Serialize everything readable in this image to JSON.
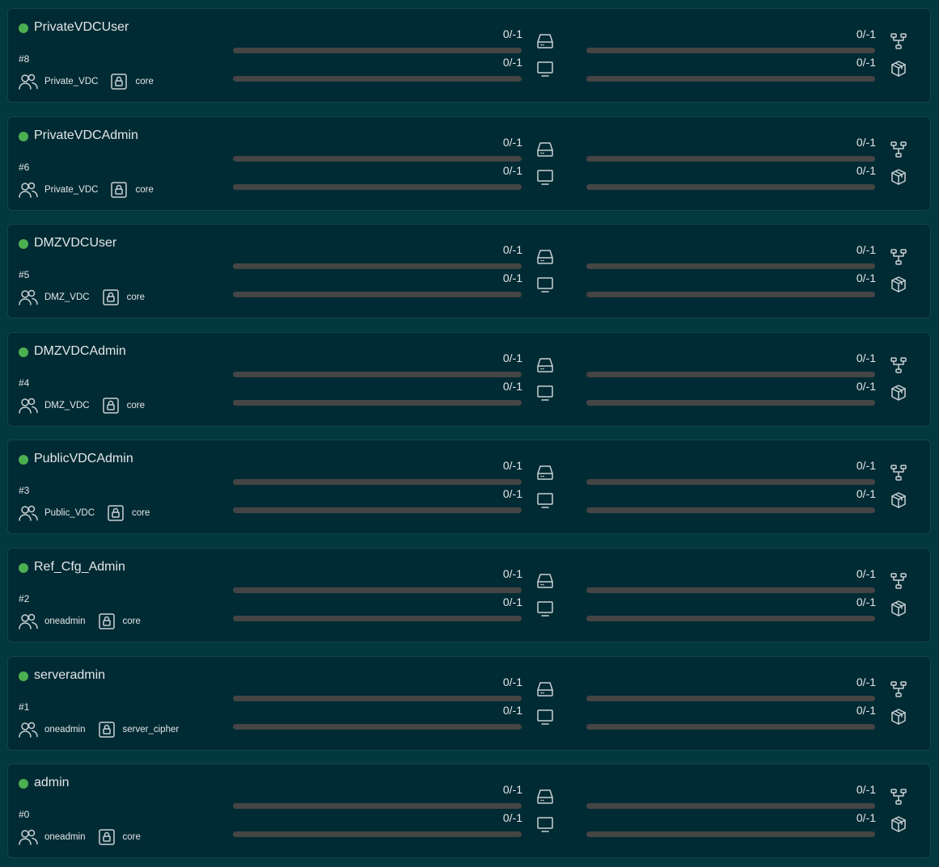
{
  "status_color": "#4caf50",
  "users": [
    {
      "name": "PrivateVDCUser",
      "id": "#8",
      "group": "Private_VDC",
      "auth": "core",
      "quotas": {
        "datastore": "0/-1",
        "vm": "0/-1",
        "network": "0/-1",
        "image": "0/-1"
      }
    },
    {
      "name": "PrivateVDCAdmin",
      "id": "#6",
      "group": "Private_VDC",
      "auth": "core",
      "quotas": {
        "datastore": "0/-1",
        "vm": "0/-1",
        "network": "0/-1",
        "image": "0/-1"
      }
    },
    {
      "name": "DMZVDCUser",
      "id": "#5",
      "group": "DMZ_VDC",
      "auth": "core",
      "quotas": {
        "datastore": "0/-1",
        "vm": "0/-1",
        "network": "0/-1",
        "image": "0/-1"
      }
    },
    {
      "name": "DMZVDCAdmin",
      "id": "#4",
      "group": "DMZ_VDC",
      "auth": "core",
      "quotas": {
        "datastore": "0/-1",
        "vm": "0/-1",
        "network": "0/-1",
        "image": "0/-1"
      }
    },
    {
      "name": "PublicVDCAdmin",
      "id": "#3",
      "group": "Public_VDC",
      "auth": "core",
      "quotas": {
        "datastore": "0/-1",
        "vm": "0/-1",
        "network": "0/-1",
        "image": "0/-1"
      }
    },
    {
      "name": "Ref_Cfg_Admin",
      "id": "#2",
      "group": "oneadmin",
      "auth": "core",
      "quotas": {
        "datastore": "0/-1",
        "vm": "0/-1",
        "network": "0/-1",
        "image": "0/-1"
      }
    },
    {
      "name": "serveradmin",
      "id": "#1",
      "group": "oneadmin",
      "auth": "server_cipher",
      "quotas": {
        "datastore": "0/-1",
        "vm": "0/-1",
        "network": "0/-1",
        "image": "0/-1"
      }
    },
    {
      "name": "admin",
      "id": "#0",
      "group": "oneadmin",
      "auth": "core",
      "quotas": {
        "datastore": "0/-1",
        "vm": "0/-1",
        "network": "0/-1",
        "image": "0/-1"
      }
    }
  ],
  "quota_progress_percent": 0,
  "icons": {
    "group": "users-icon",
    "auth": "lock-icon",
    "datastore": "hard-drive-icon",
    "vm": "monitor-icon",
    "network": "network-icon",
    "image": "package-icon"
  }
}
